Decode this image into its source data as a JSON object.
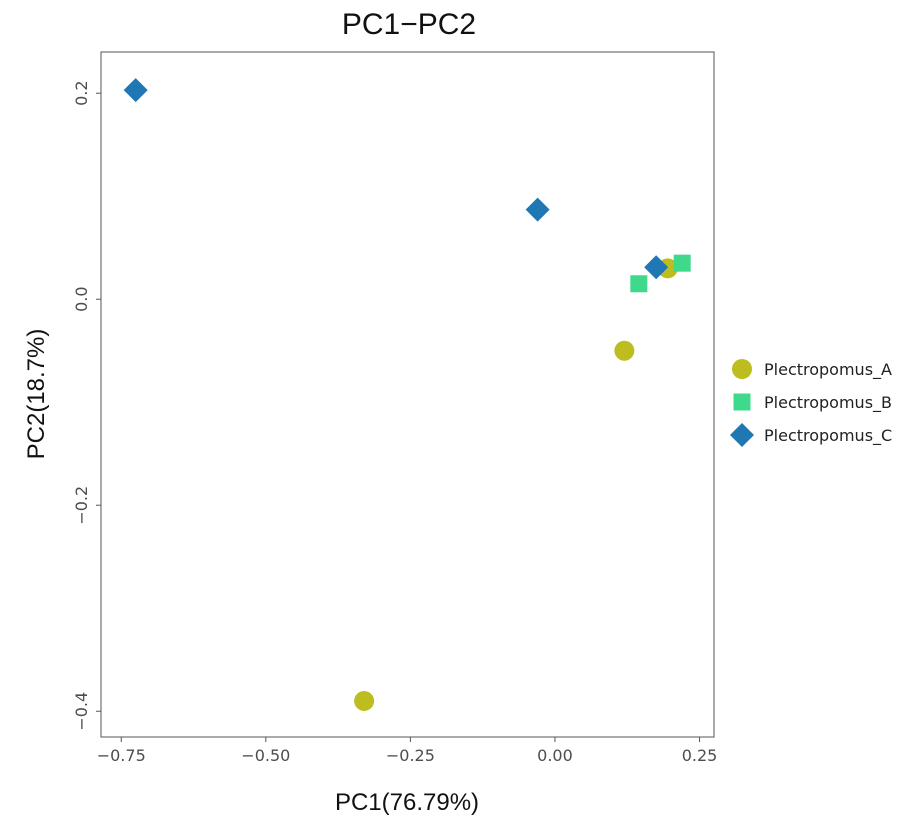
{
  "chart_data": {
    "type": "scatter",
    "title": "PC1−PC2",
    "xlabel": "PC1(76.79%)",
    "ylabel": "PC2(18.7%)",
    "xlim": [
      -0.785,
      0.275
    ],
    "ylim": [
      -0.425,
      0.24
    ],
    "xticks": [
      -0.75,
      -0.5,
      -0.25,
      0.0,
      0.25
    ],
    "xtick_labels": [
      "−0.75",
      "−0.50",
      "−0.25",
      "0.00",
      "0.25"
    ],
    "yticks": [
      -0.4,
      -0.2,
      0.0,
      0.2
    ],
    "ytick_labels": [
      "−0.4",
      "−0.2",
      "0.0",
      "0.2"
    ],
    "grid": false,
    "legend_position": "right",
    "series": [
      {
        "name": "Plectropomus_A",
        "shape": "circle",
        "color": "#BDBD1F",
        "points": [
          {
            "x": 0.195,
            "y": 0.03
          },
          {
            "x": 0.12,
            "y": -0.05
          },
          {
            "x": -0.33,
            "y": -0.39
          }
        ]
      },
      {
        "name": "Plectropomus_B",
        "shape": "square",
        "color": "#3FD98C",
        "points": [
          {
            "x": 0.22,
            "y": 0.035
          },
          {
            "x": 0.145,
            "y": 0.015
          }
        ]
      },
      {
        "name": "Plectropomus_C",
        "shape": "diamond",
        "color": "#1F77B4",
        "points": [
          {
            "x": -0.725,
            "y": 0.203
          },
          {
            "x": -0.03,
            "y": 0.087
          },
          {
            "x": 0.175,
            "y": 0.031
          }
        ]
      }
    ]
  }
}
